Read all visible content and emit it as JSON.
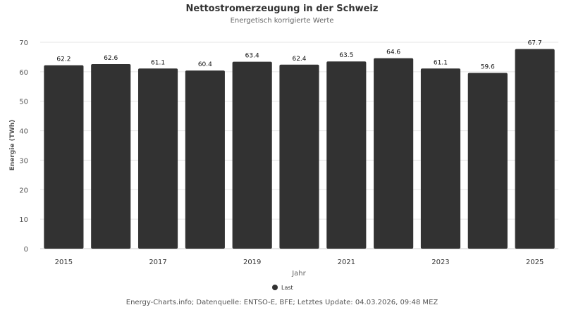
{
  "chart_data": {
    "type": "bar",
    "title": "Nettostromerzeugung in der Schweiz",
    "subtitle": "Energetisch korrigierte Werte",
    "xlabel": "Jahr",
    "ylabel": "Energie (TWh)",
    "ylim": [
      0,
      70
    ],
    "yticks": [
      0,
      10,
      20,
      30,
      40,
      50,
      60,
      70
    ],
    "categories": [
      "2015",
      "2016",
      "2017",
      "2018",
      "2019",
      "2020",
      "2021",
      "2022",
      "2023",
      "2024",
      "2025"
    ],
    "xtick_labels": [
      "2015",
      "2017",
      "2019",
      "2021",
      "2023",
      "2025"
    ],
    "series": [
      {
        "name": "Last",
        "values": [
          62.2,
          62.6,
          61.1,
          60.4,
          63.4,
          62.4,
          63.5,
          64.6,
          61.1,
          59.6,
          67.7
        ],
        "color": "#323232"
      }
    ],
    "grid": true,
    "legend_position": "bottom"
  },
  "footer": "Energy-Charts.info; Datenquelle: ENTSO-E, BFE; Letztes Update: 04.03.2026, 09:48 MEZ"
}
